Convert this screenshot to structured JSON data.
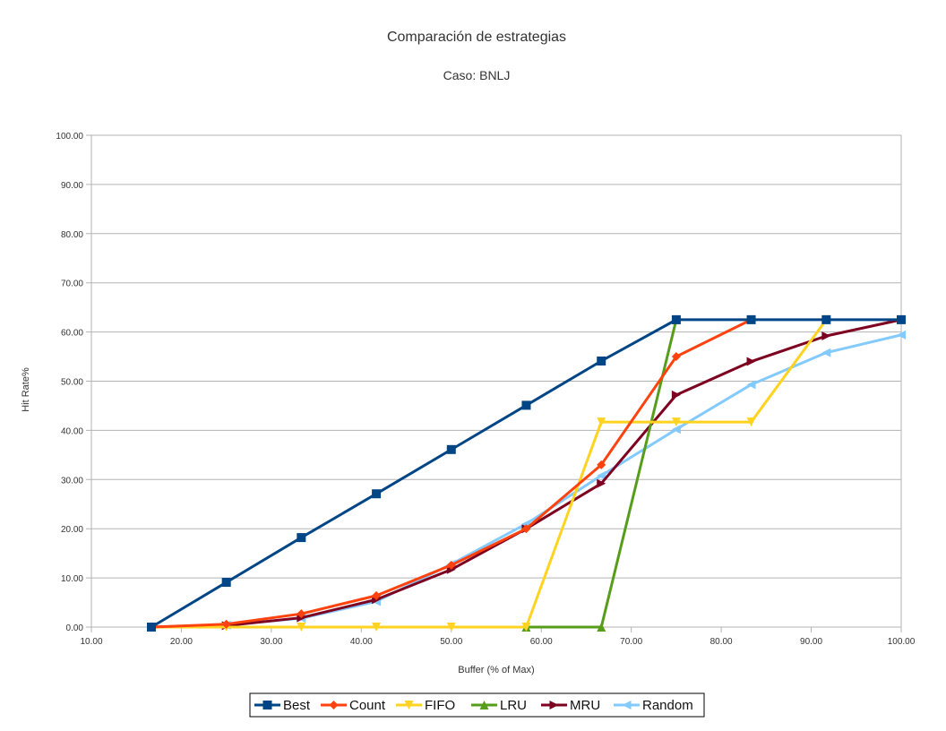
{
  "chart_data": {
    "type": "line",
    "title": "Comparación de estrategias",
    "subtitle": "Caso: BNLJ",
    "xlabel": "Buffer (% of Max)",
    "ylabel": "Hit Rate%",
    "xlim": [
      10,
      100
    ],
    "ylim": [
      0,
      100
    ],
    "x_ticks": [
      "10.00",
      "20.00",
      "30.00",
      "40.00",
      "50.00",
      "60.00",
      "70.00",
      "80.00",
      "90.00",
      "100.00"
    ],
    "y_ticks": [
      "0.00",
      "10.00",
      "20.00",
      "30.00",
      "40.00",
      "50.00",
      "60.00",
      "70.00",
      "80.00",
      "90.00",
      "100.00"
    ],
    "grid": "horizontal",
    "legend_position": "bottom",
    "x": [
      16.67,
      25.0,
      33.33,
      41.67,
      50.0,
      58.33,
      66.67,
      75.0,
      83.33,
      91.67,
      100.0
    ],
    "series": [
      {
        "name": "Best",
        "color": "#004586",
        "marker": "square",
        "values": [
          0,
          9.1,
          18.2,
          27.1,
          36.1,
          45.1,
          54.1,
          62.5,
          62.5,
          62.5,
          62.5
        ]
      },
      {
        "name": "Count",
        "color": "#ff420e",
        "marker": "diamond",
        "values": [
          0,
          0.6,
          2.7,
          6.4,
          12.6,
          20.0,
          33.0,
          55.0,
          62.5,
          null,
          null
        ]
      },
      {
        "name": "FIFO",
        "color": "#ffd320",
        "marker": "triangle-down",
        "values": [
          0,
          0,
          0,
          0,
          0,
          0,
          41.7,
          41.7,
          41.7,
          62.5,
          null
        ]
      },
      {
        "name": "LRU",
        "color": "#579d1c",
        "marker": "triangle-up",
        "values": [
          null,
          null,
          null,
          null,
          null,
          0,
          0,
          62.5,
          null,
          null,
          null
        ]
      },
      {
        "name": "MRU",
        "color": "#7e0021",
        "marker": "triangle-right",
        "values": [
          0,
          0.3,
          1.9,
          5.6,
          11.7,
          20.0,
          29.2,
          47.2,
          54.0,
          59.2,
          62.5
        ]
      },
      {
        "name": "Random",
        "color": "#83caff",
        "marker": "triangle-left",
        "values": [
          0,
          0.4,
          1.8,
          5.2,
          12.8,
          21.0,
          30.8,
          40.2,
          49.3,
          55.8,
          59.4
        ]
      }
    ]
  }
}
